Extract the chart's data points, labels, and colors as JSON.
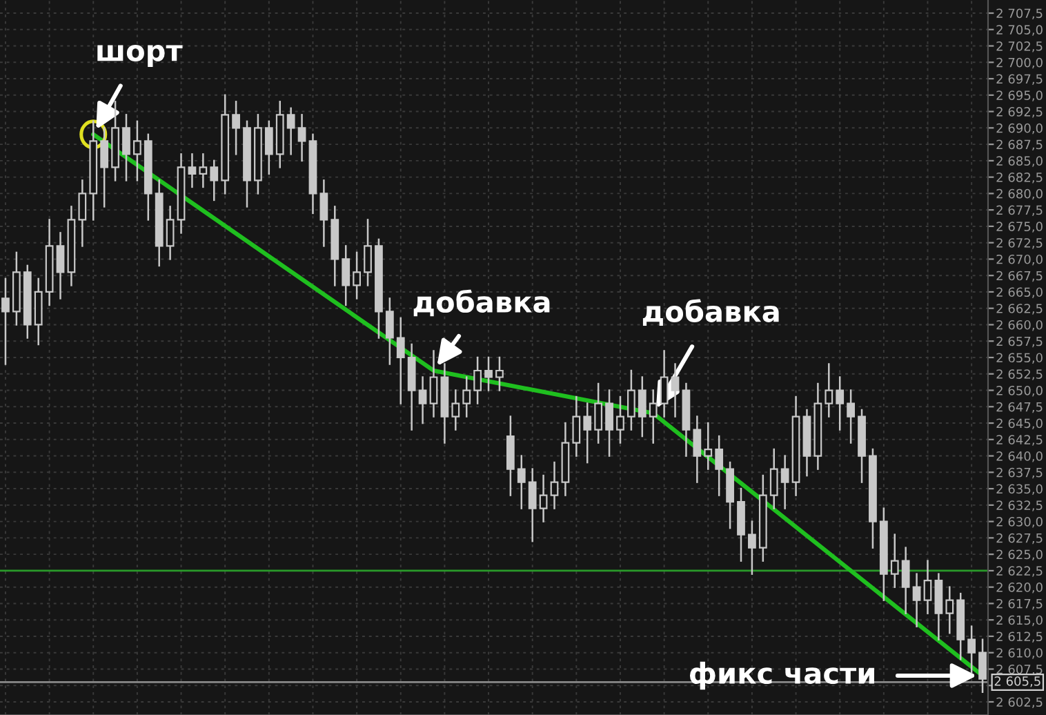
{
  "chart_data": {
    "type": "candlestick",
    "categories": [
      null,
      null,
      null,
      null,
      null,
      null,
      null,
      null,
      null,
      null,
      null,
      null,
      null,
      null,
      null,
      null,
      null,
      null,
      null,
      null,
      null,
      null,
      null,
      null,
      null,
      null,
      null,
      null,
      null,
      null,
      null,
      null,
      null,
      null,
      null,
      null,
      null,
      null,
      null,
      null,
      null,
      null,
      null,
      null,
      null,
      null,
      null,
      null,
      null,
      null,
      null,
      null,
      null,
      null,
      null,
      null,
      null,
      null,
      null,
      null,
      null,
      null,
      null,
      null,
      null,
      null,
      null,
      null,
      null,
      null,
      null,
      null,
      null,
      null,
      null,
      null,
      null,
      null,
      null,
      null,
      null,
      null,
      null,
      null,
      null,
      null,
      null,
      null,
      null,
      null
    ],
    "series": [
      {
        "color": "#c8c8c8",
        "ohlc": [
          [
            2664,
            2667,
            2654,
            2662
          ],
          [
            2662,
            2671,
            2660,
            2668
          ],
          [
            2668,
            2669,
            2658,
            2660
          ],
          [
            2660,
            2667,
            2657,
            2665
          ],
          [
            2665,
            2676,
            2663,
            2672
          ],
          [
            2672,
            2674,
            2664,
            2668
          ],
          [
            2668,
            2678,
            2666,
            2676
          ],
          [
            2676,
            2682,
            2672,
            2680
          ],
          [
            2680,
            2691,
            2676,
            2688
          ],
          [
            2688,
            2690,
            2678,
            2684
          ],
          [
            2684,
            2694,
            2682,
            2690
          ],
          [
            2690,
            2692,
            2682,
            2686
          ],
          [
            2686,
            2691,
            2682,
            2688
          ],
          [
            2688,
            2689,
            2676,
            2680
          ],
          [
            2680,
            2682,
            2669,
            2672
          ],
          [
            2672,
            2678,
            2670,
            2676
          ],
          [
            2676,
            2686,
            2674,
            2684
          ],
          [
            2684,
            2686,
            2681,
            2683
          ],
          [
            2683,
            2686,
            2681,
            2684
          ],
          [
            2684,
            2685,
            2679,
            2682
          ],
          [
            2682,
            2695,
            2680,
            2692
          ],
          [
            2692,
            2694,
            2686,
            2690
          ],
          [
            2690,
            2691,
            2678,
            2682
          ],
          [
            2682,
            2692,
            2680,
            2690
          ],
          [
            2690,
            2691,
            2683,
            2686
          ],
          [
            2686,
            2694,
            2684,
            2692
          ],
          [
            2692,
            2693,
            2686,
            2690
          ],
          [
            2690,
            2692,
            2685,
            2688
          ],
          [
            2688,
            2689,
            2677,
            2680
          ],
          [
            2680,
            2682,
            2672,
            2676
          ],
          [
            2676,
            2678,
            2666,
            2670
          ],
          [
            2670,
            2672,
            2663,
            2666
          ],
          [
            2666,
            2671,
            2664,
            2668
          ],
          [
            2668,
            2676,
            2666,
            2672
          ],
          [
            2672,
            2673,
            2658,
            2662
          ],
          [
            2662,
            2664,
            2654,
            2658
          ],
          [
            2658,
            2661,
            2648,
            2655
          ],
          [
            2655,
            2657,
            2644,
            2650
          ],
          [
            2650,
            2652,
            2645,
            2648
          ],
          [
            2648,
            2656,
            2646,
            2652
          ],
          [
            2652,
            2654,
            2642,
            2646
          ],
          [
            2646,
            2650,
            2644,
            2648
          ],
          [
            2648,
            2652,
            2646,
            2650
          ],
          [
            2650,
            2655,
            2648,
            2653
          ],
          [
            2653,
            2655,
            2650,
            2652
          ],
          [
            2652,
            2655,
            2650,
            2653
          ],
          [
            2643,
            2646,
            2634,
            2638
          ],
          [
            2638,
            2640,
            2632,
            2636
          ],
          [
            2636,
            2638,
            2627,
            2632
          ],
          [
            2632,
            2637,
            2630,
            2634
          ],
          [
            2634,
            2639,
            2632,
            2636
          ],
          [
            2636,
            2645,
            2634,
            2642
          ],
          [
            2642,
            2649,
            2640,
            2646
          ],
          [
            2646,
            2648,
            2639,
            2644
          ],
          [
            2644,
            2651,
            2642,
            2648
          ],
          [
            2648,
            2650,
            2640,
            2644
          ],
          [
            2644,
            2649,
            2642,
            2646
          ],
          [
            2646,
            2653,
            2644,
            2650
          ],
          [
            2650,
            2652,
            2643,
            2646
          ],
          [
            2646,
            2650,
            2642,
            2648
          ],
          [
            2648,
            2656,
            2646,
            2652
          ],
          [
            2652,
            2654,
            2646,
            2650
          ],
          [
            2650,
            2651,
            2640,
            2644
          ],
          [
            2644,
            2646,
            2636,
            2640
          ],
          [
            2640,
            2645,
            2638,
            2641
          ],
          [
            2641,
            2643,
            2634,
            2638
          ],
          [
            2638,
            2639,
            2629,
            2633
          ],
          [
            2633,
            2635,
            2624,
            2628
          ],
          [
            2628,
            2630,
            2622,
            2626
          ],
          [
            2626,
            2637,
            2624,
            2634
          ],
          [
            2634,
            2641,
            2632,
            2638
          ],
          [
            2638,
            2640,
            2632,
            2636
          ],
          [
            2636,
            2649,
            2634,
            2646
          ],
          [
            2646,
            2647,
            2637,
            2640
          ],
          [
            2640,
            2651,
            2638,
            2648
          ],
          [
            2648,
            2654,
            2646,
            2650
          ],
          [
            2650,
            2652,
            2644,
            2648
          ],
          [
            2648,
            2650,
            2642,
            2646
          ],
          [
            2646,
            2647,
            2636,
            2640
          ],
          [
            2640,
            2641,
            2626,
            2630
          ],
          [
            2630,
            2632,
            2618,
            2622
          ],
          [
            2622,
            2628,
            2620,
            2624
          ],
          [
            2624,
            2626,
            2616,
            2620
          ],
          [
            2620,
            2622,
            2614,
            2618
          ],
          [
            2618,
            2624,
            2616,
            2621
          ],
          [
            2621,
            2622,
            2612,
            2616
          ],
          [
            2616,
            2620,
            2613,
            2618
          ],
          [
            2618,
            2619,
            2609,
            2612
          ],
          [
            2612,
            2614,
            2607,
            2610
          ],
          [
            2610,
            2612,
            2604,
            2606
          ]
        ]
      },
      {
        "type": "line",
        "color": "#1fbf1f",
        "values": [
          null,
          null,
          null,
          null,
          null,
          null,
          null,
          null,
          2689,
          null,
          null,
          null,
          null,
          null,
          null,
          null,
          null,
          null,
          null,
          null,
          null,
          null,
          null,
          null,
          null,
          null,
          null,
          null,
          null,
          null,
          null,
          null,
          null,
          null,
          null,
          null,
          null,
          null,
          null,
          2653,
          null,
          null,
          null,
          null,
          null,
          null,
          null,
          null,
          null,
          null,
          null,
          null,
          null,
          null,
          null,
          null,
          null,
          null,
          null,
          2646.5,
          null,
          null,
          null,
          null,
          null,
          null,
          null,
          null,
          null,
          null,
          null,
          null,
          null,
          null,
          null,
          null,
          null,
          null,
          null,
          null,
          null,
          null,
          null,
          null,
          null,
          null,
          null,
          null,
          null,
          2606.5
        ]
      }
    ],
    "ylim": [
      2600.5,
      2709.5
    ],
    "yticks": [
      {
        "value": 2602.5,
        "label": "2 602,5"
      },
      {
        "value": 2605,
        "label": null
      },
      {
        "value": 2607.5,
        "label": "2 607,5"
      },
      {
        "value": 2610,
        "label": "2 610,0"
      },
      {
        "value": 2612.5,
        "label": "2 612,5"
      },
      {
        "value": 2615,
        "label": "2 615,0"
      },
      {
        "value": 2617.5,
        "label": "2 617,5"
      },
      {
        "value": 2620,
        "label": "2 620,0"
      },
      {
        "value": 2622.5,
        "label": "2 622,5"
      },
      {
        "value": 2625,
        "label": "2 625,0"
      },
      {
        "value": 2627.5,
        "label": "2 627,5"
      },
      {
        "value": 2630,
        "label": "2 630,0"
      },
      {
        "value": 2632.5,
        "label": "2 632,5"
      },
      {
        "value": 2635,
        "label": "2 635,0"
      },
      {
        "value": 2637.5,
        "label": "2 637,5"
      },
      {
        "value": 2640,
        "label": "2 640,0"
      },
      {
        "value": 2642.5,
        "label": "2 642,5"
      },
      {
        "value": 2645,
        "label": "2 645,0"
      },
      {
        "value": 2647.5,
        "label": "2 647,5"
      },
      {
        "value": 2650,
        "label": "2 650,0"
      },
      {
        "value": 2652.5,
        "label": "2 652,5"
      },
      {
        "value": 2655,
        "label": "2 655,0"
      },
      {
        "value": 2657.5,
        "label": "2 657,5"
      },
      {
        "value": 2660,
        "label": "2 660,0"
      },
      {
        "value": 2662.5,
        "label": "2 662,5"
      },
      {
        "value": 2665,
        "label": "2 665,0"
      },
      {
        "value": 2667.5,
        "label": "2 667,5"
      },
      {
        "value": 2670,
        "label": "2 670,0"
      },
      {
        "value": 2672.5,
        "label": "2 672,5"
      },
      {
        "value": 2675,
        "label": "2 675,0"
      },
      {
        "value": 2677.5,
        "label": "2 677,5"
      },
      {
        "value": 2680,
        "label": "2 680,0"
      },
      {
        "value": 2682.5,
        "label": "2 682,5"
      },
      {
        "value": 2685,
        "label": "2 685,0"
      },
      {
        "value": 2687.5,
        "label": "2 687,5"
      },
      {
        "value": 2690,
        "label": "2 690,0"
      },
      {
        "value": 2692.5,
        "label": "2 692,5"
      },
      {
        "value": 2695,
        "label": "2 695,0"
      },
      {
        "value": 2697.5,
        "label": "2 697,5"
      },
      {
        "value": 2700,
        "label": "2 700,0"
      },
      {
        "value": 2702.5,
        "label": "2 702,5"
      },
      {
        "value": 2705,
        "label": "2 705,0"
      },
      {
        "value": 2707.5,
        "label": "2 707,5"
      }
    ],
    "tick_labels": "y",
    "grid": true,
    "ref_lines": [
      {
        "axis": "y",
        "value": 2622.5,
        "color": "#2a9a2a"
      },
      {
        "axis": "y",
        "value": 2605.5,
        "label": "2 605,5",
        "color": "#8a8a8a"
      }
    ],
    "annotations": [
      "шорт",
      "добавка",
      "добавка",
      "фикс части"
    ]
  }
}
